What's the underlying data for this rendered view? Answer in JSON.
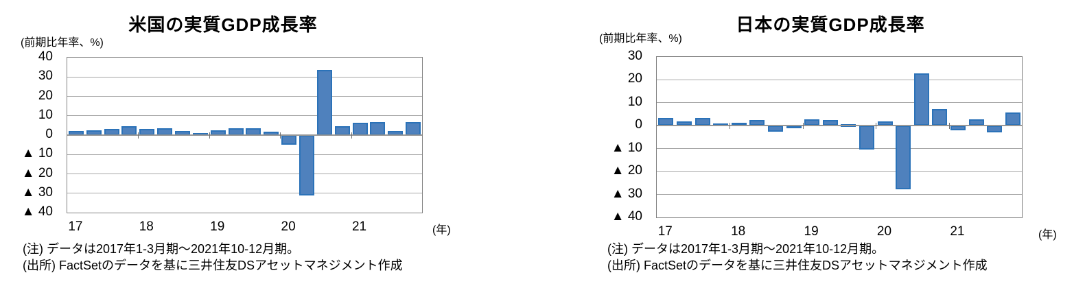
{
  "style": {
    "bar_fill": "#4f81bd",
    "bar_border": "#2b72b8",
    "grid_color": "#a6a6a6",
    "axis_color": "#808080"
  },
  "chart_data": [
    {
      "type": "bar",
      "title": "米国の実質GDP成長率",
      "unit_label": "(前期比年率、%)",
      "categories": [
        "2017Q1",
        "2017Q2",
        "2017Q3",
        "2017Q4",
        "2018Q1",
        "2018Q2",
        "2018Q3",
        "2018Q4",
        "2019Q1",
        "2019Q2",
        "2019Q3",
        "2019Q4",
        "2020Q1",
        "2020Q2",
        "2020Q3",
        "2020Q4",
        "2021Q1",
        "2021Q2",
        "2021Q3",
        "2021Q4"
      ],
      "values": [
        2.1,
        2.5,
        3.3,
        4.5,
        3.3,
        3.7,
        2.3,
        1.2,
        2.6,
        3.4,
        3.4,
        1.9,
        -5.1,
        -31.2,
        33.8,
        4.5,
        6.3,
        6.7,
        2.3,
        6.9
      ],
      "ylim": [
        -40,
        40
      ],
      "ytick_values": [
        40,
        30,
        20,
        10,
        0,
        -10,
        -20,
        -30,
        -40
      ],
      "ytick_labels": [
        "40",
        "30",
        "20",
        "10",
        "0",
        "▲ 10",
        "▲ 20",
        "▲ 30",
        "▲ 40"
      ],
      "x_year_labels": [
        "17",
        "18",
        "19",
        "20",
        "21"
      ],
      "x_axis_unit": "(年)",
      "grid": true,
      "legend": "none",
      "note": "(注) データは2017年1-3月期～2021年10-12月期。",
      "source": "(出所) FactSetのデータを基に三井住友DSアセットマネジメント作成"
    },
    {
      "type": "bar",
      "title": "日本の実質GDP成長率",
      "unit_label": "(前期比年率、%)",
      "categories": [
        "2017Q1",
        "2017Q2",
        "2017Q3",
        "2017Q4",
        "2018Q1",
        "2018Q2",
        "2018Q3",
        "2018Q4",
        "2019Q1",
        "2019Q2",
        "2019Q3",
        "2019Q4",
        "2020Q1",
        "2020Q2",
        "2020Q3",
        "2020Q4",
        "2021Q1",
        "2021Q2",
        "2021Q3",
        "2021Q4"
      ],
      "values": [
        3.4,
        2.0,
        3.3,
        1.1,
        1.3,
        2.4,
        -2.5,
        -0.8,
        2.8,
        2.6,
        0.8,
        -10.4,
        2.0,
        -27.7,
        22.9,
        7.4,
        -2.0,
        2.7,
        -3.0,
        5.7
      ],
      "ylim": [
        -40,
        30
      ],
      "ytick_values": [
        30,
        20,
        10,
        0,
        -10,
        -20,
        -30,
        -40
      ],
      "ytick_labels": [
        "30",
        "20",
        "10",
        "0",
        "▲ 10",
        "▲ 20",
        "▲ 30",
        "▲ 40"
      ],
      "x_year_labels": [
        "17",
        "18",
        "19",
        "20",
        "21"
      ],
      "x_axis_unit": "(年)",
      "grid": true,
      "legend": "none",
      "note": "(注) データは2017年1-3月期～2021年10-12月期。",
      "source": "(出所) FactSetのデータを基に三井住友DSアセットマネジメント作成"
    }
  ]
}
